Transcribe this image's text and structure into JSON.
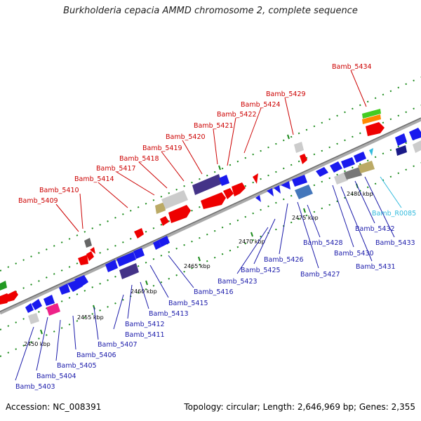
{
  "title": "Burkholderia cepacia AMMD chromosome 2, complete sequence",
  "footer": {
    "accession": "Accession: NC_008391",
    "summary": "Topology: circular; Length: 2,646,969 bp; Genes: 2,355"
  },
  "colors": {
    "top_strand_label": "#cc0000",
    "bottom_strand_label": "#1a1aaa",
    "rna_label": "#33bbdd",
    "backbone": "#777777",
    "tick": "#1a8a1a"
  },
  "scale_labels": [
    "2450 kbp",
    "2455 kbp",
    "2460 kbp",
    "2465 kbp",
    "2470 kbp",
    "2475 kbp",
    "2480 kbp"
  ],
  "top_genes": [
    "Bamb_5409",
    "Bamb_5410",
    "Bamb_5414",
    "Bamb_5417",
    "Bamb_5418",
    "Bamb_5419",
    "Bamb_5420",
    "Bamb_5421",
    "Bamb_5422",
    "Bamb_5424",
    "Bamb_5429",
    "Bamb_5434"
  ],
  "bottom_genes": [
    "Bamb_5403",
    "Bamb_5404",
    "Bamb_5405",
    "Bamb_5406",
    "Bamb_5407",
    "Bamb_5411",
    "Bamb_5412",
    "Bamb_5413",
    "Bamb_5415",
    "Bamb_5416",
    "Bamb_5423",
    "Bamb_5425",
    "Bamb_5426",
    "Bamb_5427",
    "Bamb_5428",
    "Bamb_5430",
    "Bamb_5431",
    "Bamb_5432",
    "Bamb_5433"
  ],
  "rna_genes": [
    "Bamb_R0085"
  ]
}
